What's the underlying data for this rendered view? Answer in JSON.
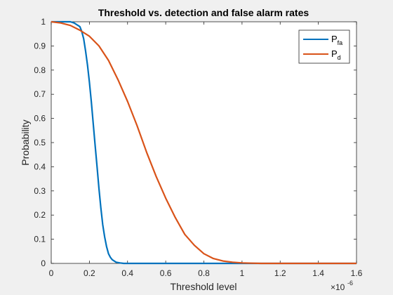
{
  "chart_data": {
    "type": "line",
    "title": "Threshold vs. detection and false alarm rates",
    "xlabel": "Threshold level",
    "ylabel": "Probability",
    "x_multiplier": {
      "base": "×10",
      "exponent": "-6"
    },
    "xlim": [
      0,
      1.6
    ],
    "ylim": [
      0,
      1
    ],
    "xticks": [
      "0",
      "0.2",
      "0.4",
      "0.6",
      "0.8",
      "1",
      "1.2",
      "1.4",
      "1.6"
    ],
    "yticks": [
      "0",
      "0.1",
      "0.2",
      "0.3",
      "0.4",
      "0.5",
      "0.6",
      "0.7",
      "0.8",
      "0.9",
      "1"
    ],
    "grid": false,
    "legend_position": "top-right",
    "series": [
      {
        "name": "P",
        "name_subscript": "fa",
        "color": "#0072BD",
        "x": [
          0,
          0.05,
          0.1,
          0.12,
          0.14,
          0.15,
          0.16,
          0.17,
          0.18,
          0.19,
          0.2,
          0.21,
          0.22,
          0.23,
          0.24,
          0.25,
          0.26,
          0.27,
          0.28,
          0.29,
          0.3,
          0.31,
          0.32,
          0.34,
          0.36,
          0.38,
          0.4,
          1.6
        ],
        "y": [
          1,
          1,
          1,
          0.995,
          0.985,
          0.98,
          0.96,
          0.93,
          0.88,
          0.82,
          0.75,
          0.67,
          0.58,
          0.49,
          0.4,
          0.31,
          0.23,
          0.16,
          0.11,
          0.07,
          0.04,
          0.025,
          0.015,
          0.005,
          0.002,
          0,
          0,
          0
        ]
      },
      {
        "name": "P",
        "name_subscript": "d",
        "color": "#D95319",
        "x": [
          0,
          0.05,
          0.1,
          0.15,
          0.2,
          0.25,
          0.3,
          0.35,
          0.4,
          0.45,
          0.5,
          0.55,
          0.6,
          0.65,
          0.7,
          0.75,
          0.8,
          0.85,
          0.9,
          0.95,
          1.0,
          1.05,
          1.1,
          1.6
        ],
        "y": [
          1,
          0.995,
          0.985,
          0.965,
          0.94,
          0.9,
          0.84,
          0.76,
          0.67,
          0.57,
          0.46,
          0.36,
          0.27,
          0.19,
          0.12,
          0.075,
          0.04,
          0.02,
          0.01,
          0.005,
          0.002,
          0.001,
          0,
          0
        ]
      }
    ]
  }
}
